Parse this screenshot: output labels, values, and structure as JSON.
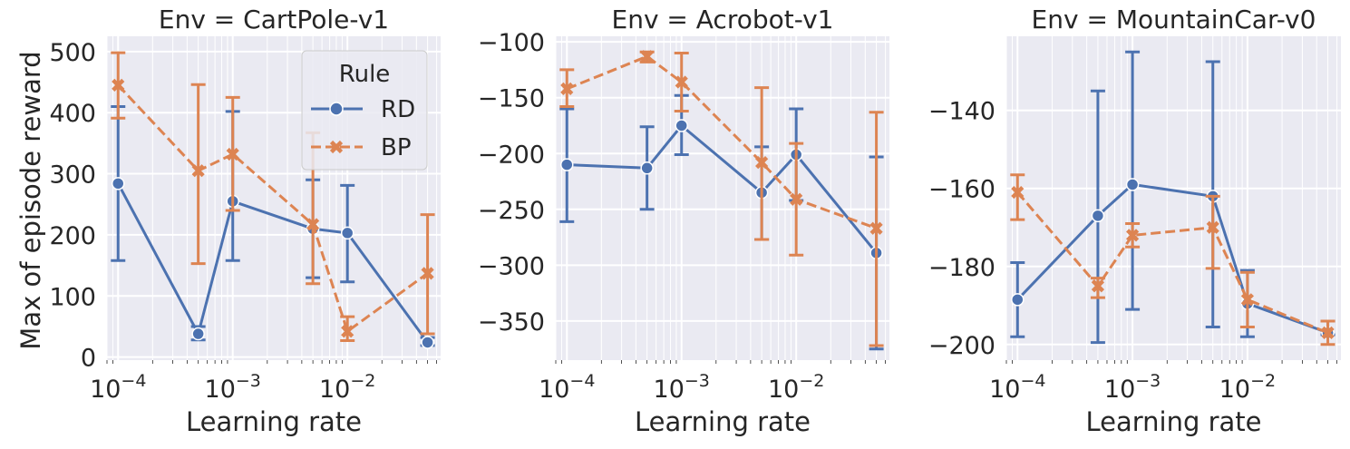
{
  "figure": {
    "ylabel": "Max of episode reward",
    "xlabel": "Learning rate"
  },
  "colors": {
    "RD": "#4c72b0",
    "BP": "#dd8452",
    "panel_bg": "#eaeaf2",
    "grid": "#ffffff"
  },
  "legend": {
    "title": "Rule",
    "location": "upper-right of first panel",
    "entries": [
      {
        "label": "RD",
        "marker": "circle",
        "linestyle": "solid"
      },
      {
        "label": "BP",
        "marker": "x",
        "linestyle": "dashed"
      }
    ]
  },
  "chart_data": [
    {
      "type": "line",
      "title": "Env = CartPole-v1",
      "xlabel": "Learning rate",
      "ylabel": "Max of episode reward",
      "xscale": "log",
      "x": [
        0.0001,
        0.0005,
        0.001,
        0.005,
        0.01,
        0.05
      ],
      "xlim": [
        8e-05,
        0.065
      ],
      "xticks": [
        {
          "value": 0.0001,
          "mantissa": "10",
          "exp": "−4"
        },
        {
          "value": 0.001,
          "mantissa": "10",
          "exp": "−3"
        },
        {
          "value": 0.01,
          "mantissa": "10",
          "exp": "−2"
        }
      ],
      "ylim": [
        -5,
        525
      ],
      "yticks": [
        0,
        100,
        200,
        300,
        400,
        500
      ],
      "yticklabels": [
        "0",
        "100",
        "200",
        "300",
        "400",
        "500"
      ],
      "grid": true,
      "legend": true,
      "series": [
        {
          "name": "RD",
          "values": [
            284,
            38,
            255,
            210,
            203,
            24
          ],
          "lower": [
            158,
            28,
            158,
            130,
            123,
            19
          ],
          "upper": [
            410,
            50,
            402,
            290,
            281,
            32
          ]
        },
        {
          "name": "BP",
          "values": [
            445,
            305,
            332,
            217,
            42,
            137
          ],
          "lower": [
            391,
            153,
            240,
            120,
            27,
            38
          ],
          "upper": [
            498,
            446,
            425,
            367,
            66,
            233
          ]
        }
      ]
    },
    {
      "type": "line",
      "title": "Env = Acrobot-v1",
      "xlabel": "Learning rate",
      "ylabel": "",
      "xscale": "log",
      "x": [
        0.0001,
        0.0005,
        0.001,
        0.005,
        0.01,
        0.05
      ],
      "xlim": [
        8e-05,
        0.065
      ],
      "xticks": [
        {
          "value": 0.0001,
          "mantissa": "10",
          "exp": "−4"
        },
        {
          "value": 0.001,
          "mantissa": "10",
          "exp": "−3"
        },
        {
          "value": 0.01,
          "mantissa": "10",
          "exp": "−2"
        }
      ],
      "ylim": [
        -385,
        -95
      ],
      "yticks": [
        -350,
        -300,
        -250,
        -200,
        -150,
        -100
      ],
      "yticklabels": [
        "−350",
        "−300",
        "−250",
        "−200",
        "−150",
        "−100"
      ],
      "grid": true,
      "legend": false,
      "series": [
        {
          "name": "RD",
          "values": [
            -210,
            -213,
            -175,
            -235,
            -201,
            -289
          ],
          "lower": [
            -261,
            -250,
            -201,
            -277,
            -242,
            -375
          ],
          "upper": [
            -160,
            -176,
            -148,
            -194,
            -160,
            -203
          ]
        },
        {
          "name": "BP",
          "values": [
            -142,
            -113,
            -136,
            -208,
            -241,
            -267
          ],
          "lower": [
            -158,
            -118,
            -162,
            -277,
            -291,
            -372
          ],
          "upper": [
            -125,
            -109,
            -110,
            -141,
            -191,
            -163
          ]
        }
      ]
    },
    {
      "type": "line",
      "title": "Env = MountainCar-v0",
      "xlabel": "Learning rate",
      "ylabel": "",
      "xscale": "log",
      "x": [
        0.0001,
        0.0005,
        0.001,
        0.005,
        0.01,
        0.05
      ],
      "xlim": [
        8e-05,
        0.065
      ],
      "xticks": [
        {
          "value": 0.0001,
          "mantissa": "10",
          "exp": "−4"
        },
        {
          "value": 0.001,
          "mantissa": "10",
          "exp": "−3"
        },
        {
          "value": 0.01,
          "mantissa": "10",
          "exp": "−2"
        }
      ],
      "ylim": [
        -204,
        -121
      ],
      "yticks": [
        -200,
        -180,
        -160,
        -140
      ],
      "yticklabels": [
        "−200",
        "−180",
        "−160",
        "−140"
      ],
      "grid": true,
      "legend": false,
      "series": [
        {
          "name": "RD",
          "values": [
            -188.5,
            -167,
            -159,
            -162,
            -189.5,
            -197
          ],
          "lower": [
            -198,
            -199.5,
            -191,
            -195.5,
            -198,
            -197.5
          ],
          "upper": [
            -179,
            -135,
            -125,
            -127.5,
            -181,
            -194
          ]
        },
        {
          "name": "BP",
          "values": [
            -161,
            -185,
            -172,
            -170,
            -188.5,
            -197
          ],
          "lower": [
            -168,
            -188,
            -175,
            -180.5,
            -195.5,
            -200
          ],
          "upper": [
            -156.5,
            -183,
            -169,
            -162,
            -181.5,
            -194
          ]
        }
      ]
    }
  ]
}
